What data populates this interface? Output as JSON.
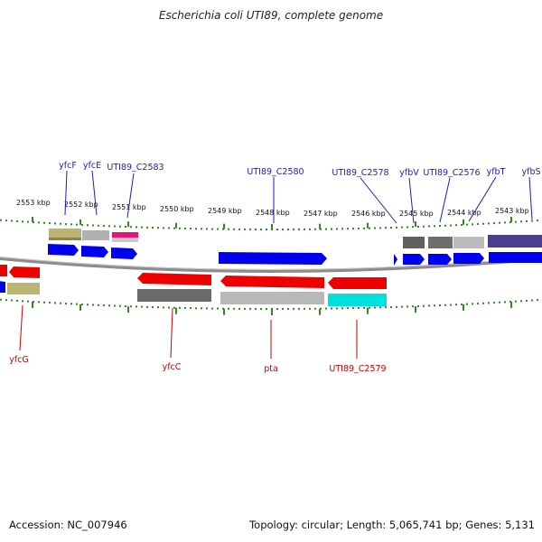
{
  "title": "Escherichia coli UTI89, complete genome",
  "footer": {
    "accession": "Accession: NC_007946",
    "topology": "Topology: circular; Length: 5,065,741 bp; Genes: 5,131"
  },
  "colors": {
    "forward_label": "#1a1acc",
    "reverse_label": "#cc0000",
    "tick": "#2e8b22",
    "backbone": "#8c8c8c"
  },
  "kbp_labels": [
    "2553 kbp",
    "2552 kbp",
    "2551 kbp",
    "2550 kbp",
    "2549 kbp",
    "2548 kbp",
    "2547 kbp",
    "2546 kbp",
    "2545 kbp",
    "2544 kbp",
    "2543 kbp"
  ],
  "forward_gene_labels": [
    "yfcF",
    "yfcE",
    "UTI89_C2583",
    "UTI89_C2580",
    "UTI89_C2578",
    "yfbV",
    "UTI89_C2576",
    "yfbT",
    "yfbS"
  ],
  "reverse_gene_labels": [
    "yfcG",
    "yfcC",
    "pta",
    "UTI89_C2579"
  ]
}
